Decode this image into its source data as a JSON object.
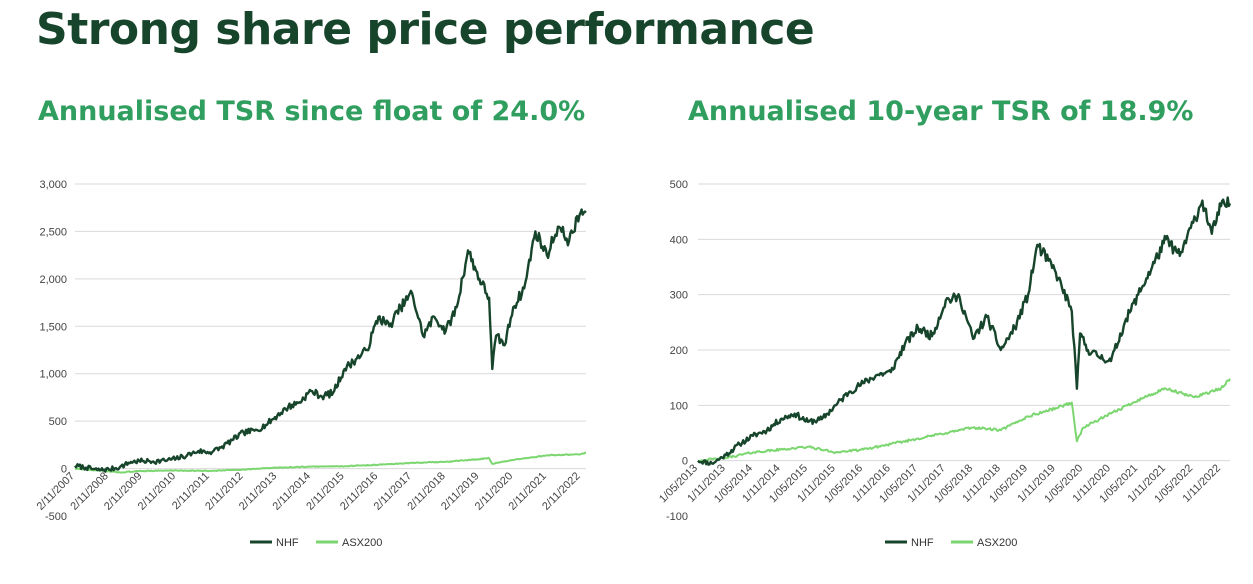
{
  "slide": {
    "title": "Strong share price performance"
  },
  "colors": {
    "title": "#17452b",
    "heading": "#2f9e5e",
    "nhf": "#17452b",
    "asx200": "#7bd66f",
    "grid": "#d9d9d9"
  },
  "chart_data": [
    {
      "type": "line",
      "heading": "Annualised TSR since float of 24.0%",
      "y_axis": {
        "min": -500,
        "max": 3000,
        "ticks": [
          -500,
          0,
          500,
          1000,
          1500,
          2000,
          2500,
          3000
        ],
        "tick_labels": [
          "-500",
          "0",
          "500",
          "1,000",
          "1,500",
          "2,000",
          "2,500",
          "3,000"
        ]
      },
      "x_range": [
        "2007-11-02",
        "2022-12-31"
      ],
      "x_ticks": [
        "2/11/2007",
        "2/11/2008",
        "2/11/2009",
        "2/11/2010",
        "2/11/2011",
        "2/11/2012",
        "2/11/2013",
        "2/11/2014",
        "2/11/2015",
        "2/11/2016",
        "2/11/2017",
        "2/11/2018",
        "2/11/2019",
        "2/11/2020",
        "2/11/2021",
        "2/11/2022"
      ],
      "legend": [
        "NHF",
        "ASX200"
      ],
      "legend_position": "bottom",
      "grid": true,
      "series": [
        {
          "name": "NHF",
          "points": [
            [
              "2007-11-02",
              30
            ],
            [
              "2008-03-01",
              10
            ],
            [
              "2008-07-01",
              -15
            ],
            [
              "2008-11-02",
              -10
            ],
            [
              "2009-03-01",
              15
            ],
            [
              "2009-07-01",
              70
            ],
            [
              "2009-11-02",
              80
            ],
            [
              "2010-03-01",
              75
            ],
            [
              "2010-07-01",
              85
            ],
            [
              "2010-11-02",
              105
            ],
            [
              "2011-03-01",
              140
            ],
            [
              "2011-07-01",
              185
            ],
            [
              "2011-11-02",
              170
            ],
            [
              "2012-03-01",
              220
            ],
            [
              "2012-07-01",
              300
            ],
            [
              "2012-11-02",
              380
            ],
            [
              "2013-03-01",
              400
            ],
            [
              "2013-07-01",
              460
            ],
            [
              "2013-11-02",
              560
            ],
            [
              "2014-03-01",
              650
            ],
            [
              "2014-07-01",
              700
            ],
            [
              "2014-11-02",
              820
            ],
            [
              "2015-03-01",
              760
            ],
            [
              "2015-07-01",
              800
            ],
            [
              "2015-11-02",
              1050
            ],
            [
              "2016-03-01",
              1150
            ],
            [
              "2016-07-01",
              1250
            ],
            [
              "2016-11-02",
              1600
            ],
            [
              "2017-03-01",
              1500
            ],
            [
              "2017-07-01",
              1700
            ],
            [
              "2017-11-02",
              1850
            ],
            [
              "2018-03-01",
              1400
            ],
            [
              "2018-07-01",
              1600
            ],
            [
              "2018-11-02",
              1450
            ],
            [
              "2019-03-01",
              1700
            ],
            [
              "2019-07-01",
              2300
            ],
            [
              "2019-11-02",
              2000
            ],
            [
              "2020-02-15",
              1800
            ],
            [
              "2020-03-20",
              1050
            ],
            [
              "2020-05-01",
              1400
            ],
            [
              "2020-08-01",
              1300
            ],
            [
              "2020-11-02",
              1700
            ],
            [
              "2021-03-01",
              1900
            ],
            [
              "2021-07-01",
              2500
            ],
            [
              "2021-11-02",
              2250
            ],
            [
              "2022-03-01",
              2550
            ],
            [
              "2022-07-01",
              2400
            ],
            [
              "2022-11-02",
              2700
            ],
            [
              "2022-12-31",
              2700
            ]
          ]
        },
        {
          "name": "ASX200",
          "points": [
            [
              "2007-11-02",
              0
            ],
            [
              "2008-07-01",
              -20
            ],
            [
              "2009-03-01",
              -40
            ],
            [
              "2009-11-02",
              -25
            ],
            [
              "2010-11-02",
              -20
            ],
            [
              "2011-11-02",
              -25
            ],
            [
              "2012-11-02",
              -10
            ],
            [
              "2013-11-02",
              10
            ],
            [
              "2014-11-02",
              20
            ],
            [
              "2015-11-02",
              25
            ],
            [
              "2016-11-02",
              40
            ],
            [
              "2017-11-02",
              60
            ],
            [
              "2018-11-02",
              70
            ],
            [
              "2019-11-02",
              100
            ],
            [
              "2020-02-15",
              110
            ],
            [
              "2020-03-20",
              50
            ],
            [
              "2020-11-02",
              90
            ],
            [
              "2021-11-02",
              140
            ],
            [
              "2022-11-02",
              150
            ],
            [
              "2022-12-31",
              165
            ]
          ]
        }
      ]
    },
    {
      "type": "line",
      "heading": "Annualised 10-year TSR of 18.9%",
      "y_axis": {
        "min": -100,
        "max": 500,
        "ticks": [
          -100,
          0,
          100,
          200,
          300,
          400,
          500
        ],
        "tick_labels": [
          "-100",
          "0",
          "100",
          "200",
          "300",
          "400",
          "500"
        ]
      },
      "x_range": [
        "2013-05-01",
        "2022-12-31"
      ],
      "x_ticks": [
        "1/05/2013",
        "1/11/2013",
        "1/05/2014",
        "1/11/2014",
        "1/05/2015",
        "1/11/2015",
        "1/05/2016",
        "1/11/2016",
        "1/05/2017",
        "1/11/2017",
        "1/05/2018",
        "1/11/2018",
        "1/05/2019",
        "1/11/2019",
        "1/05/2020",
        "1/11/2020",
        "1/05/2021",
        "1/11/2021",
        "1/05/2022",
        "1/11/2022"
      ],
      "legend": [
        "NHF",
        "ASX200"
      ],
      "legend_position": "bottom",
      "grid": true,
      "series": [
        {
          "name": "NHF",
          "points": [
            [
              "2013-05-01",
              0
            ],
            [
              "2013-08-01",
              -5
            ],
            [
              "2013-11-01",
              10
            ],
            [
              "2014-02-01",
              30
            ],
            [
              "2014-05-01",
              45
            ],
            [
              "2014-08-01",
              55
            ],
            [
              "2014-11-01",
              75
            ],
            [
              "2015-02-01",
              85
            ],
            [
              "2015-05-01",
              70
            ],
            [
              "2015-08-01",
              75
            ],
            [
              "2015-11-01",
              100
            ],
            [
              "2016-02-01",
              125
            ],
            [
              "2016-05-01",
              140
            ],
            [
              "2016-08-01",
              155
            ],
            [
              "2016-11-01",
              160
            ],
            [
              "2017-02-01",
              210
            ],
            [
              "2017-05-01",
              240
            ],
            [
              "2017-08-01",
              225
            ],
            [
              "2017-11-01",
              290
            ],
            [
              "2018-02-01",
              295
            ],
            [
              "2018-05-01",
              220
            ],
            [
              "2018-08-01",
              260
            ],
            [
              "2018-11-01",
              200
            ],
            [
              "2019-02-01",
              240
            ],
            [
              "2019-05-01",
              300
            ],
            [
              "2019-07-01",
              390
            ],
            [
              "2019-11-01",
              340
            ],
            [
              "2020-02-15",
              270
            ],
            [
              "2020-03-20",
              130
            ],
            [
              "2020-04-10",
              230
            ],
            [
              "2020-06-01",
              200
            ],
            [
              "2020-08-01",
              190
            ],
            [
              "2020-11-01",
              180
            ],
            [
              "2021-02-01",
              250
            ],
            [
              "2021-05-01",
              300
            ],
            [
              "2021-08-01",
              350
            ],
            [
              "2021-11-01",
              400
            ],
            [
              "2022-02-01",
              370
            ],
            [
              "2022-05-01",
              430
            ],
            [
              "2022-07-01",
              470
            ],
            [
              "2022-09-01",
              410
            ],
            [
              "2022-11-01",
              460
            ],
            [
              "2022-12-31",
              465
            ]
          ]
        },
        {
          "name": "ASX200",
          "points": [
            [
              "2013-05-01",
              0
            ],
            [
              "2013-11-01",
              5
            ],
            [
              "2014-05-01",
              15
            ],
            [
              "2014-11-01",
              20
            ],
            [
              "2015-05-01",
              25
            ],
            [
              "2015-11-01",
              15
            ],
            [
              "2016-05-01",
              20
            ],
            [
              "2016-11-01",
              30
            ],
            [
              "2017-05-01",
              40
            ],
            [
              "2017-11-01",
              50
            ],
            [
              "2018-05-01",
              60
            ],
            [
              "2018-11-01",
              55
            ],
            [
              "2019-05-01",
              80
            ],
            [
              "2019-11-01",
              95
            ],
            [
              "2020-02-15",
              105
            ],
            [
              "2020-03-20",
              35
            ],
            [
              "2020-05-01",
              60
            ],
            [
              "2020-11-01",
              85
            ],
            [
              "2021-05-01",
              110
            ],
            [
              "2021-11-01",
              130
            ],
            [
              "2022-05-01",
              115
            ],
            [
              "2022-11-01",
              130
            ],
            [
              "2022-12-31",
              148
            ]
          ]
        }
      ]
    }
  ]
}
